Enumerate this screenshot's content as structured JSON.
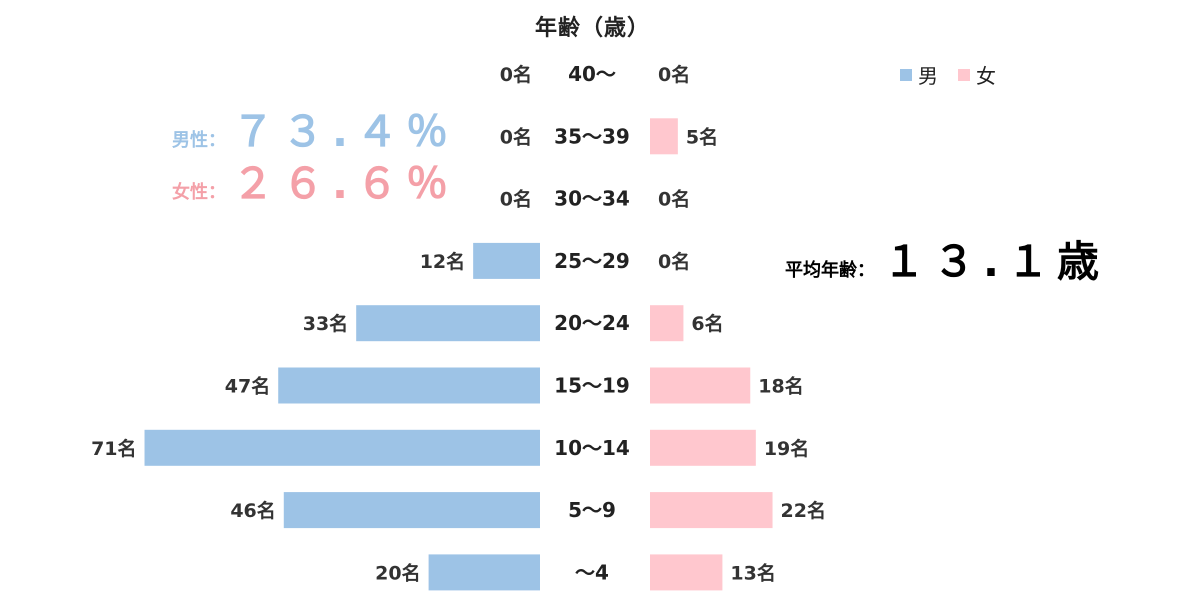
{
  "chart_data": {
    "type": "bar",
    "title": "年齢（歳）",
    "categories": [
      "40〜",
      "35〜39",
      "30〜34",
      "25〜29",
      "20〜24",
      "15〜19",
      "10〜14",
      "5〜9",
      "〜4"
    ],
    "series": [
      {
        "name": "男",
        "color": "#9dc3e6",
        "values": [
          0,
          0,
          0,
          12,
          33,
          47,
          71,
          46,
          20
        ]
      },
      {
        "name": "女",
        "color": "#ffc7ce",
        "values": [
          0,
          5,
          0,
          0,
          6,
          18,
          19,
          22,
          13
        ]
      }
    ],
    "value_suffix": "名",
    "legend_position": "top-right",
    "grid": false
  },
  "summary": {
    "male_label": "男性：",
    "male_value": "７３.４％",
    "female_label": "女性：",
    "female_value": "２６.６％",
    "average_label": "平均年齢：",
    "average_value": "１３.１歳"
  },
  "colors": {
    "male": "#9dc3e6",
    "female": "#ffc7ce",
    "male_text": "#9dc3e6",
    "female_text": "#f4a0a8"
  }
}
